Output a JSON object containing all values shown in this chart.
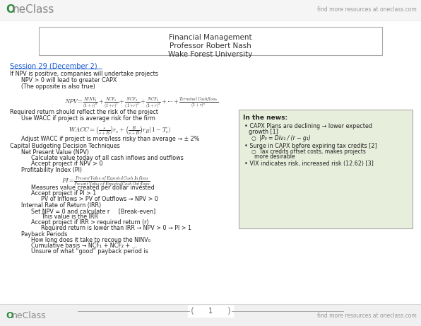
{
  "bg_color": "#ffffff",
  "header_bar_color": "#f5f5f5",
  "oneclass_dot_color": "#2d7a3a",
  "link_color": "#999999",
  "session_link_color": "#1155cc",
  "news_box_color": "#e8eedc",
  "news_box_border": "#aaaaaa",
  "header_title": "Financial Management",
  "header_subtitle": "Professor Robert Nash",
  "header_university": "Wake Forest University",
  "find_more_text": "find more resources at oneclass.com",
  "session_title": "Session 29 (December 2)",
  "news_title": "In the news:",
  "page_number": "1",
  "footer_bg": "#f0f0f0",
  "body_fs": 5.8,
  "indent0": 14,
  "indent1": 30,
  "indent2": 44,
  "indent3": 58,
  "indent4": 68
}
